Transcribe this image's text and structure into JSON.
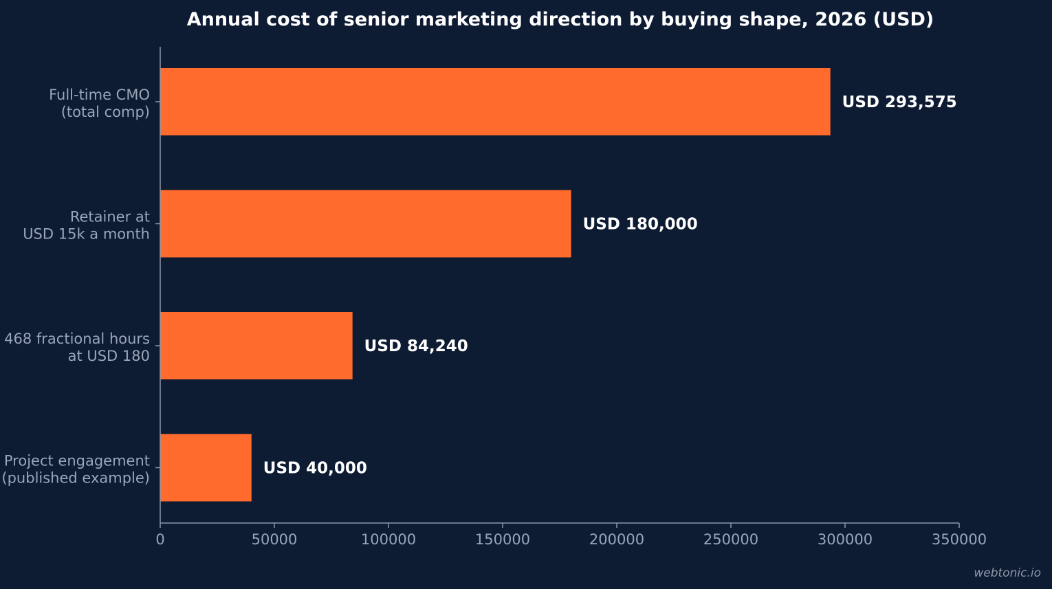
{
  "chart_data": {
    "type": "bar",
    "orientation": "horizontal",
    "title": "Annual cost of senior marketing direction by buying shape, 2026 (USD)",
    "categories": [
      [
        "Full-time CMO",
        "(total comp)"
      ],
      [
        "Retainer at",
        "USD 15k a month"
      ],
      [
        "468 fractional hours",
        "at USD 180"
      ],
      [
        "Project engagement",
        "(published example)"
      ]
    ],
    "values": [
      293575,
      180000,
      84240,
      40000
    ],
    "value_labels": [
      "USD 293,575",
      "USD 180,000",
      "USD 84,240",
      "USD 40,000"
    ],
    "xlim": [
      0,
      350000
    ],
    "xticks": [
      0,
      50000,
      100000,
      150000,
      200000,
      250000,
      300000,
      350000
    ],
    "xlabel": "",
    "ylabel": "",
    "grid": false,
    "bar_color": "#ff6b2d",
    "background_color": "#0d1b33"
  },
  "watermark": "webtonic.io"
}
